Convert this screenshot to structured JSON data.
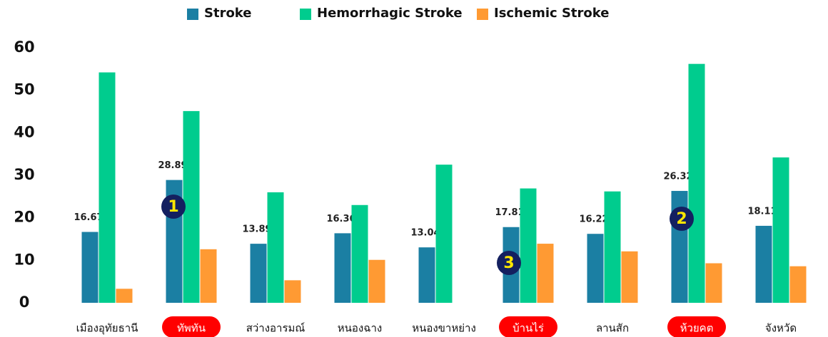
{
  "chart_data": {
    "type": "bar",
    "categories": [
      "เมืองอุทัยธานี",
      "ทัพทัน",
      "สว่างอารมณ์",
      "หนองฉาง",
      "หนองขาหย่าง",
      "บ้านไร่",
      "ลานสัก",
      "ห้วยคต",
      "จังหวัด"
    ],
    "series": [
      {
        "name": "Stroke",
        "color": "#1b7fa3",
        "values": [
          16.67,
          28.89,
          13.89,
          16.36,
          13.04,
          17.81,
          16.22,
          26.32,
          18.11
        ]
      },
      {
        "name": "Hemorrhagic Stroke",
        "color": "#00cc8e",
        "values": [
          54.2,
          45.1,
          26.0,
          23.0,
          32.5,
          26.9,
          26.2,
          56.2,
          34.2
        ]
      },
      {
        "name": "Ischemic Stroke",
        "color": "#ff9a33",
        "values": [
          3.3,
          12.6,
          5.3,
          10.1,
          null,
          13.9,
          12.1,
          9.3,
          8.6
        ]
      }
    ],
    "ylim": [
      0,
      60
    ],
    "yticks": [
      0,
      10,
      20,
      30,
      40,
      50,
      60
    ],
    "grid": false,
    "highlighted": [
      1,
      5,
      7
    ],
    "highlight_color": "#ff0000",
    "annotations": [
      "1",
      "2",
      "3"
    ]
  }
}
